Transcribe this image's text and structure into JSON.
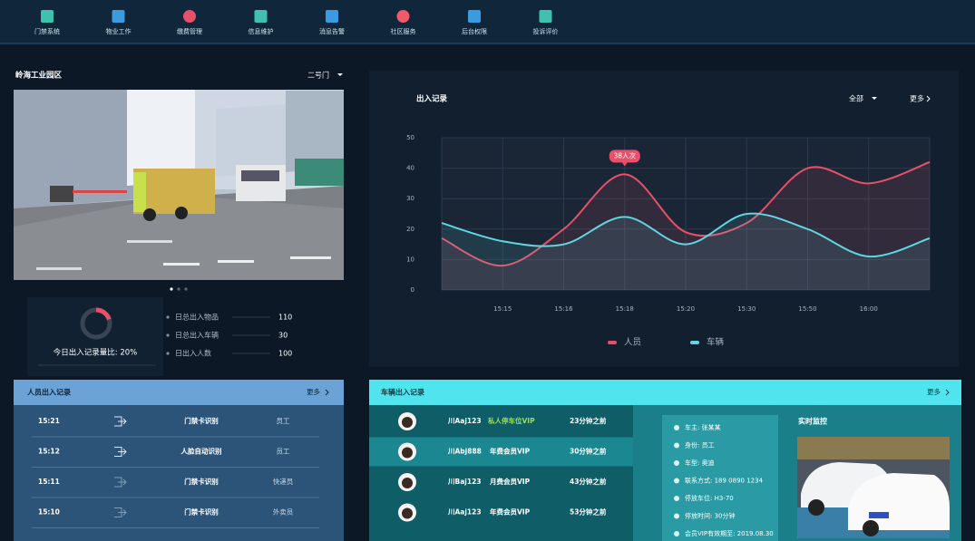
{
  "nav": {
    "items": [
      "门禁系统",
      "物业工作",
      "缴费管理",
      "信息维护",
      "消息告警",
      "社区服务",
      "后台权限",
      "投诉评价"
    ]
  },
  "park": {
    "title": "岭海工业园区",
    "gate": "二号门",
    "ratio": 20,
    "ratio_label": "今日出入记录量比: 20%",
    "stats": [
      {
        "label": "日总出入物品",
        "value": 110
      },
      {
        "label": "日总出入车辆",
        "value": 30
      },
      {
        "label": "日出入人数",
        "value": 100
      }
    ]
  },
  "chart_data": {
    "type": "line",
    "title": "出入记录",
    "filter": "全部",
    "more": "更多",
    "categories": [
      null,
      "15:15",
      "15:16",
      "15:18",
      "15:20",
      "15:30",
      "15:50",
      "16:00",
      null
    ],
    "series": [
      {
        "name": "人员",
        "color": "#e8506a",
        "values": [
          17,
          8,
          20,
          38,
          19,
          22,
          40,
          35,
          42
        ]
      },
      {
        "name": "车辆",
        "color": "#5fd6e0",
        "values": [
          22,
          16,
          15,
          24,
          15,
          25,
          20,
          11,
          17
        ]
      }
    ],
    "ylim": [
      0,
      50
    ],
    "yticks": [
      0,
      10,
      20,
      30,
      40,
      50
    ],
    "grid": true,
    "annotation": "38人次"
  },
  "people": {
    "title": "人员出入记录",
    "more": "更多",
    "rows": [
      {
        "time": "15:21",
        "method": "门禁卡识别",
        "role": "员工"
      },
      {
        "time": "15:12",
        "method": "人脸自动识别",
        "role": "员工"
      },
      {
        "time": "15:11",
        "method": "门禁卡识别",
        "role": "快递员"
      },
      {
        "time": "15:10",
        "method": "门禁卡识别",
        "role": "外卖员"
      }
    ]
  },
  "vehicles": {
    "title": "车辆出入记录",
    "more": "更多",
    "rows": [
      {
        "plate": "川Aaj123",
        "type": "私人停车位VIP",
        "time": "23分钟之前"
      },
      {
        "plate": "川Abj888",
        "type": "年费会员VIP",
        "time": "30分钟之前"
      },
      {
        "plate": "川Baj123",
        "type": "月费会员VIP",
        "time": "43分钟之前"
      },
      {
        "plate": "川Aaj123",
        "type": "年费会员VIP",
        "time": "53分钟之前"
      }
    ],
    "detail": [
      "车主: 张某某",
      "身份: 员工",
      "车型: 奥迪",
      "联系方式: 189 0890 1234",
      "停放车位: H3-70",
      "停放时间: 30分钟",
      "会员VIP有效期至: 2019.08.30"
    ],
    "monitor": "实时监控"
  }
}
